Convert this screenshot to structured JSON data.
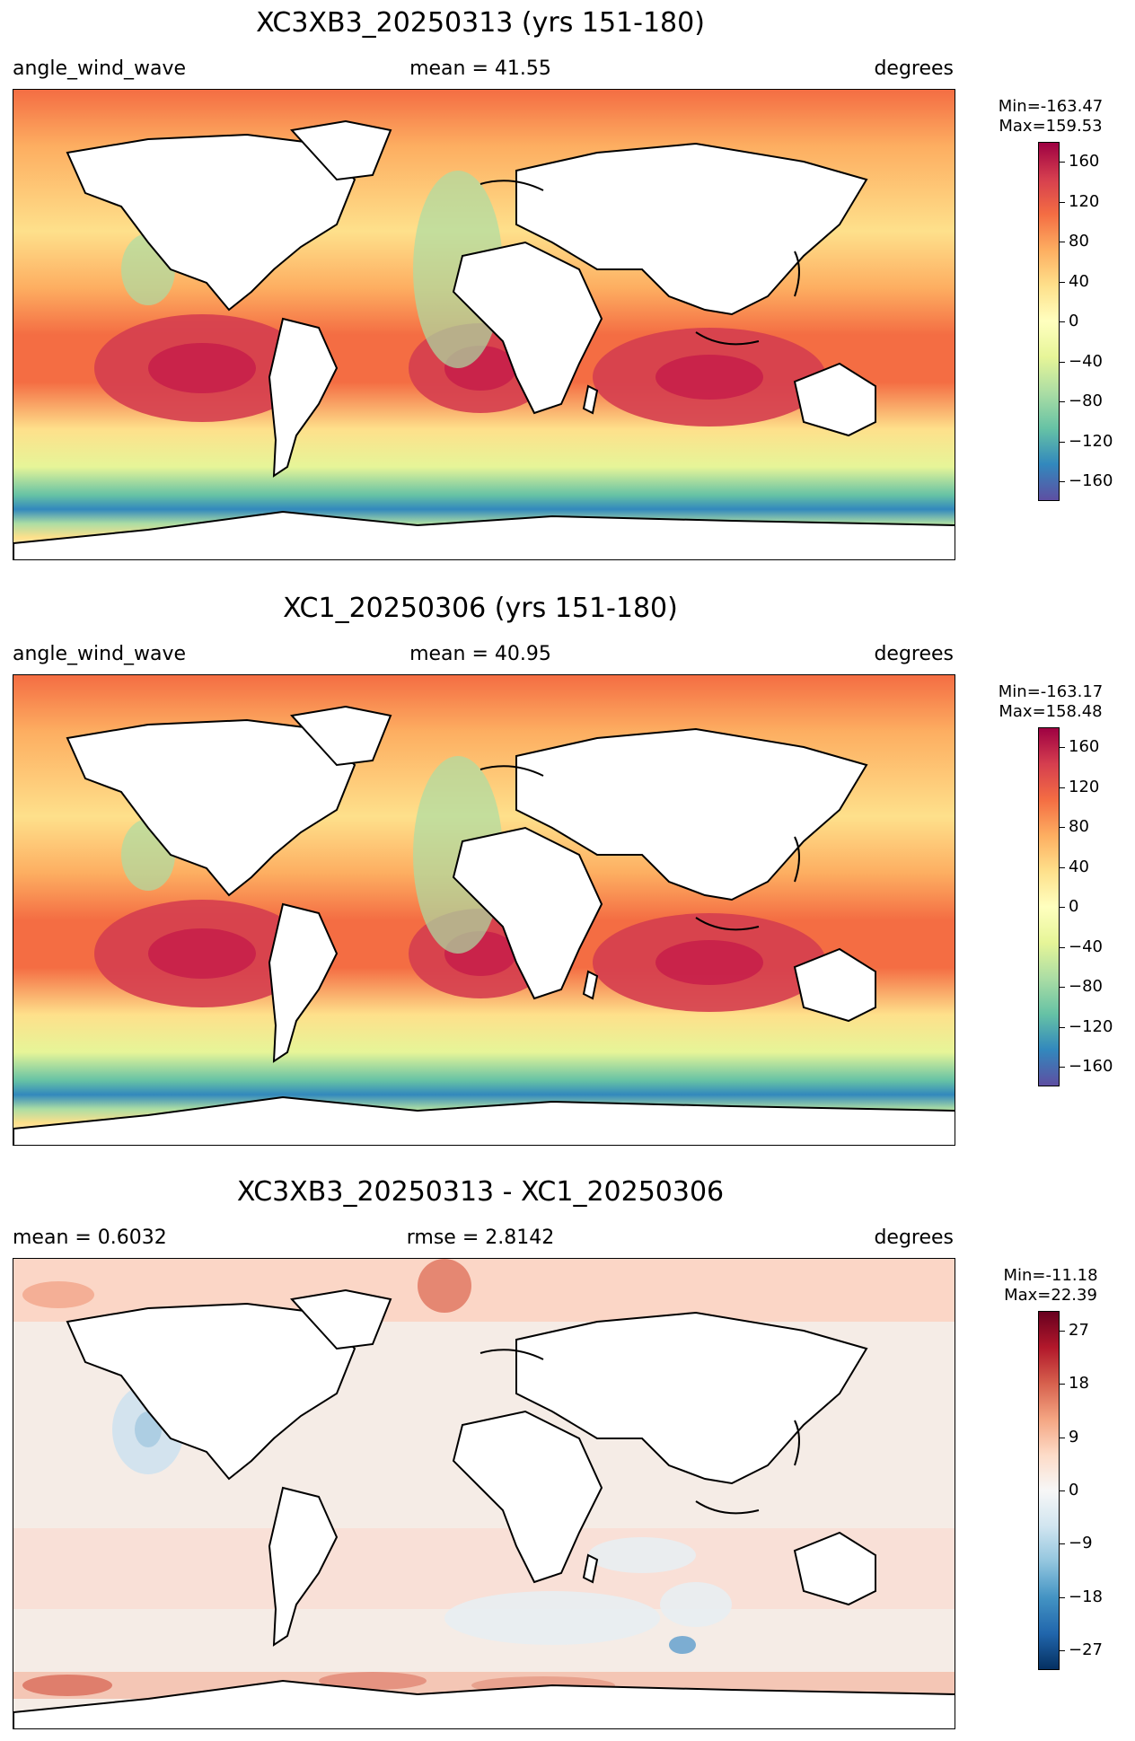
{
  "panels": [
    {
      "title": "XC3XB3_20250313 (yrs 151-180)",
      "left_label": "angle_wind_wave",
      "center_label": "mean = 41.55",
      "right_label": "degrees",
      "min_text": "Min=-163.47",
      "max_text": "Max=159.53",
      "cbar_ticks": [
        "160",
        "120",
        "80",
        "40",
        "0",
        "−40",
        "−80",
        "−120",
        "−160"
      ],
      "cbar_colors": [
        "#5e4fa2",
        "#3288bd",
        "#66c2a5",
        "#abdda4",
        "#e6f598",
        "#ffffbf",
        "#fee08b",
        "#fdae61",
        "#f46d43",
        "#d53e4f",
        "#9e0142"
      ]
    },
    {
      "title": "XC1_20250306 (yrs 151-180)",
      "left_label": "angle_wind_wave",
      "center_label": "mean = 40.95",
      "right_label": "degrees",
      "min_text": "Min=-163.17",
      "max_text": "Max=158.48",
      "cbar_ticks": [
        "160",
        "120",
        "80",
        "40",
        "0",
        "−40",
        "−80",
        "−120",
        "−160"
      ],
      "cbar_colors": [
        "#5e4fa2",
        "#3288bd",
        "#66c2a5",
        "#abdda4",
        "#e6f598",
        "#ffffbf",
        "#fee08b",
        "#fdae61",
        "#f46d43",
        "#d53e4f",
        "#9e0142"
      ]
    },
    {
      "title": "XC3XB3_20250313 - XC1_20250306",
      "left_label": "mean = 0.6032",
      "center_label": "rmse = 2.8142",
      "right_label": "degrees",
      "min_text": "Min=-11.18",
      "max_text": "Max=22.39",
      "cbar_ticks": [
        "27",
        "18",
        "9",
        "0",
        "−9",
        "−18",
        "−27"
      ],
      "cbar_colors": [
        "#053061",
        "#2166ac",
        "#4393c3",
        "#92c5de",
        "#d1e5f0",
        "#f7f7f7",
        "#fddbc7",
        "#f4a582",
        "#d6604d",
        "#b2182b",
        "#67001f"
      ]
    }
  ]
}
